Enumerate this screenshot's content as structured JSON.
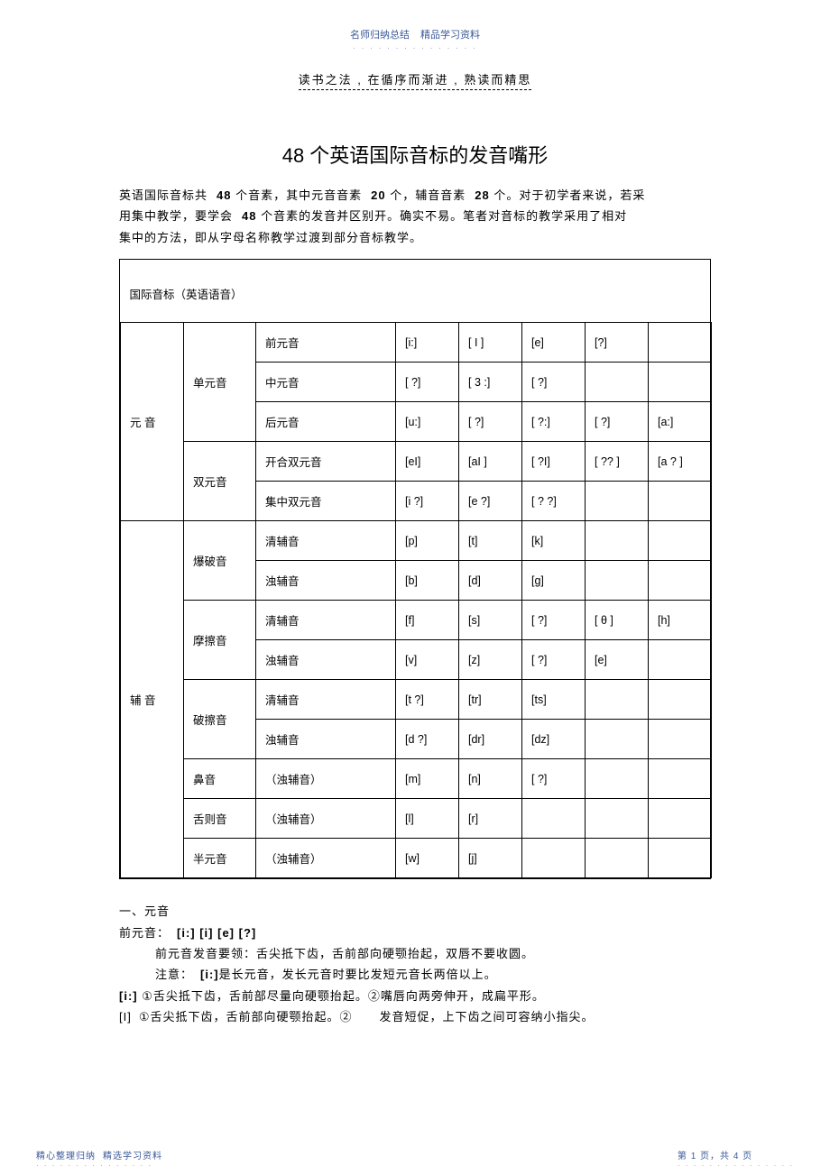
{
  "header": {
    "line1_left": "名师归纳总结",
    "line1_right": "精品学习资料",
    "dots": "· · · · · · · · · · · · · · ·",
    "subtitle": "读书之法 , 在循序而渐进  , 熟读而精思"
  },
  "title": "48  个英语国际音标的发音嘴形",
  "intro": {
    "p1_a": "英语国际音标共",
    "p1_b": "48",
    "p1_c": "个音素，其中元音音素",
    "p1_d": "20",
    "p1_e": "个，辅音音素",
    "p1_f": "28",
    "p1_g": "个。对于初学者来说，若采",
    "p2_a": "用集中教学，要学会",
    "p2_b": "48",
    "p2_c": "个音素的发音并区别开。确实不易。笔者对音标的教学采用了相对",
    "p3": "集中的方法，即从字母名称教学过渡到部分音标教学。"
  },
  "table": {
    "header": "国际音标（英语语音）",
    "rows": [
      {
        "cat1": "元   音",
        "cat1_rowspan": 5,
        "cat2": "单元音",
        "cat2_rowspan": 3,
        "label": "前元音",
        "cells": [
          "[i:]",
          "[ I ]",
          "[e]",
          "[?]",
          ""
        ]
      },
      {
        "label": "中元音",
        "cells": [
          "[ ?]",
          "[ 3  :]",
          "[ ?]",
          "",
          ""
        ]
      },
      {
        "label": "后元音",
        "cells": [
          "[u:]",
          "[ ?]",
          "[ ?:]",
          "[ ?]",
          "[a:]"
        ]
      },
      {
        "cat2": "双元音",
        "cat2_rowspan": 2,
        "label": "开合双元音",
        "cells": [
          "[eI]",
          "[aI ]",
          "[ ?I]",
          "[ ?? ]",
          "[a ? ]"
        ]
      },
      {
        "label": "集中双元音",
        "cells": [
          "[i   ?]",
          "[e ?]",
          "[ ? ?]",
          "",
          ""
        ]
      },
      {
        "cat1": "辅   音",
        "cat1_rowspan": 9,
        "cat2": "爆破音",
        "cat2_rowspan": 2,
        "label": "清辅音",
        "cells": [
          "[p]",
          "[t]",
          "[k]",
          "",
          ""
        ]
      },
      {
        "label": "浊辅音",
        "cells": [
          "[b]",
          "[d]",
          "[g]",
          "",
          ""
        ]
      },
      {
        "cat2": "摩擦音",
        "cat2_rowspan": 2,
        "label": "清辅音",
        "cells": [
          "[f]",
          "[s]",
          "[ ?]",
          "[ θ  ]",
          "[h]"
        ]
      },
      {
        "label": "浊辅音",
        "cells": [
          "[v]",
          "[z]",
          "[ ?]",
          "[e]",
          ""
        ]
      },
      {
        "cat2": "破擦音",
        "cat2_rowspan": 2,
        "label": "清辅音",
        "cells": [
          "[t  ?]",
          "[tr]",
          "[ts]",
          "",
          ""
        ]
      },
      {
        "label": "浊辅音",
        "cells": [
          "[d ?]",
          "[dr]",
          "[dz]",
          "",
          ""
        ]
      },
      {
        "cat2": "鼻音",
        "cat2_rowspan": 1,
        "label": "（浊辅音）",
        "cells": [
          "[m]",
          "[n]",
          "[ ?]",
          "",
          ""
        ]
      },
      {
        "cat2": "舌则音",
        "cat2_rowspan": 1,
        "label": "（浊辅音）",
        "cells": [
          "[l]",
          "[r]",
          "",
          "",
          ""
        ]
      },
      {
        "cat2": "半元音",
        "cat2_rowspan": 1,
        "label": "（浊辅音）",
        "cells": [
          "[w]",
          "[j]",
          "",
          "",
          ""
        ]
      }
    ]
  },
  "body": {
    "l1": "一、元音",
    "l2_a": "前元音：",
    "l2_b": "[i:] [i] [e] [?]",
    "l3": "前元音发音要领：舌尖抵下齿，舌前部向硬颚抬起，双唇不要收圆。",
    "l4_a": "注意：",
    "l4_b": "[i:]",
    "l4_c": "是长元音，发长元音时要比发短元音长两倍以上。",
    "l5_a": "[i:]",
    "l5_b": "①舌尖抵下齿，舌前部尽量向硬颚抬起。②嘴唇向两旁伸开，成扁平形。",
    "l6_a": "[I]",
    "l6_b": "①舌尖抵下齿，舌前部向硬颚抬起。②",
    "l6_c": "发音短促，上下齿之间可容纳小指尖。"
  },
  "footer": {
    "left_a": "精心整理归纳",
    "left_b": "精选学习资料",
    "dots": "· · · · · · · · · · · · · · ·",
    "right_a": "第",
    "right_b": "1",
    "right_c": "页，共",
    "right_d": "4",
    "right_e": "页"
  }
}
